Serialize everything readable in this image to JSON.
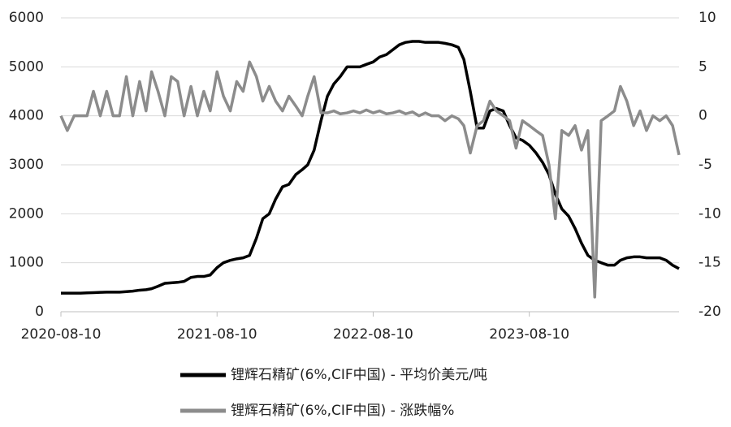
{
  "chart_data": {
    "type": "line",
    "x": [
      "2020-08-10",
      "2020-08-25",
      "2020-09-10",
      "2020-09-25",
      "2020-10-10",
      "2020-10-25",
      "2020-11-10",
      "2020-11-25",
      "2020-12-10",
      "2020-12-25",
      "2021-01-10",
      "2021-01-25",
      "2021-02-10",
      "2021-02-25",
      "2021-03-10",
      "2021-03-25",
      "2021-04-10",
      "2021-04-25",
      "2021-05-10",
      "2021-05-25",
      "2021-06-10",
      "2021-06-25",
      "2021-07-10",
      "2021-07-25",
      "2021-08-10",
      "2021-08-25",
      "2021-09-10",
      "2021-09-25",
      "2021-10-10",
      "2021-10-25",
      "2021-11-10",
      "2021-11-25",
      "2021-12-10",
      "2021-12-25",
      "2022-01-10",
      "2022-01-25",
      "2022-02-10",
      "2022-02-25",
      "2022-03-10",
      "2022-03-25",
      "2022-04-10",
      "2022-04-25",
      "2022-05-10",
      "2022-05-25",
      "2022-06-10",
      "2022-06-25",
      "2022-07-10",
      "2022-07-25",
      "2022-08-10",
      "2022-08-25",
      "2022-09-10",
      "2022-09-25",
      "2022-10-10",
      "2022-10-25",
      "2022-11-10",
      "2022-11-25",
      "2022-12-10",
      "2022-12-25",
      "2023-01-10",
      "2023-01-25",
      "2023-02-10",
      "2023-02-25",
      "2023-03-10",
      "2023-03-25",
      "2023-04-10",
      "2023-04-25",
      "2023-05-10",
      "2023-05-25",
      "2023-06-10",
      "2023-06-25",
      "2023-07-10",
      "2023-07-25",
      "2023-08-10",
      "2023-08-25",
      "2023-09-10",
      "2023-09-25",
      "2023-10-10",
      "2023-10-25",
      "2023-11-10",
      "2023-11-25",
      "2023-12-10",
      "2023-12-25",
      "2024-01-10",
      "2024-01-25",
      "2024-02-10",
      "2024-02-25",
      "2024-03-10",
      "2024-03-25",
      "2024-04-10",
      "2024-04-25",
      "2024-05-10",
      "2024-05-25",
      "2024-06-10",
      "2024-06-25",
      "2024-07-10",
      "2024-07-25"
    ],
    "series": [
      {
        "name": "锂辉石精矿(6%,CIF中国) - 平均价美元/吨",
        "color": "#000000",
        "axis": "y",
        "values": [
          380,
          380,
          380,
          380,
          385,
          390,
          395,
          400,
          400,
          400,
          410,
          420,
          440,
          450,
          470,
          520,
          580,
          590,
          600,
          620,
          700,
          720,
          720,
          750,
          900,
          1000,
          1050,
          1080,
          1100,
          1150,
          1500,
          1900,
          2000,
          2300,
          2550,
          2600,
          2800,
          2900,
          3000,
          3300,
          3900,
          4400,
          4650,
          4800,
          5000,
          5000,
          5000,
          5050,
          5100,
          5200,
          5250,
          5350,
          5450,
          5500,
          5520,
          5520,
          5500,
          5500,
          5500,
          5480,
          5450,
          5400,
          5150,
          4500,
          3750,
          3750,
          4100,
          4150,
          4100,
          3800,
          3550,
          3500,
          3400,
          3250,
          3050,
          2800,
          2400,
          2100,
          1950,
          1700,
          1400,
          1150,
          1050,
          1000,
          950,
          950,
          1050,
          1100,
          1120,
          1120,
          1100,
          1100,
          1100,
          1050,
          950,
          880
        ]
      },
      {
        "name": "锂辉石精矿(6%,CIF中国) - 涨跌幅%",
        "color": "#8c8c8c",
        "axis": "y2",
        "values": [
          0,
          -1.5,
          0,
          0,
          0,
          2.5,
          0,
          2.5,
          0,
          0,
          4,
          0,
          3.5,
          0.5,
          4.5,
          2.5,
          0,
          4,
          3.5,
          0,
          3,
          0,
          2.5,
          0.5,
          4.5,
          2,
          0.5,
          3.5,
          2.5,
          5.5,
          4,
          1.5,
          3,
          1.5,
          0.5,
          2,
          1,
          0,
          2,
          4,
          0.3,
          0.3,
          0.5,
          0.2,
          0.3,
          0.5,
          0.3,
          0.6,
          0.3,
          0.5,
          0.2,
          0.3,
          0.5,
          0.2,
          0.4,
          0,
          0.3,
          0,
          0,
          -0.5,
          0,
          -0.3,
          -1,
          -3.8,
          -1,
          -0.5,
          1.5,
          0.5,
          0,
          -0.5,
          -3.3,
          -0.5,
          -1,
          -1.5,
          -2,
          -5,
          -10.5,
          -1.5,
          -2,
          -1,
          -3.5,
          -1.5,
          -18.5,
          -0.5,
          0,
          0.5,
          3,
          1.5,
          -1,
          0.5,
          -1.5,
          0,
          -0.5,
          0,
          -1,
          -4
        ]
      }
    ],
    "xlim": [
      "2020-08-10",
      "2024-07-25"
    ],
    "xticks": [
      "2020-08-10",
      "2021-08-10",
      "2022-08-10",
      "2023-08-10"
    ],
    "ylim": [
      0,
      6000
    ],
    "yticks": [
      0,
      1000,
      2000,
      3000,
      4000,
      5000,
      6000
    ],
    "y2lim": [
      -20,
      10
    ],
    "y2ticks": [
      -20,
      -15,
      -10,
      -5,
      0,
      5,
      10
    ],
    "grid": true
  }
}
